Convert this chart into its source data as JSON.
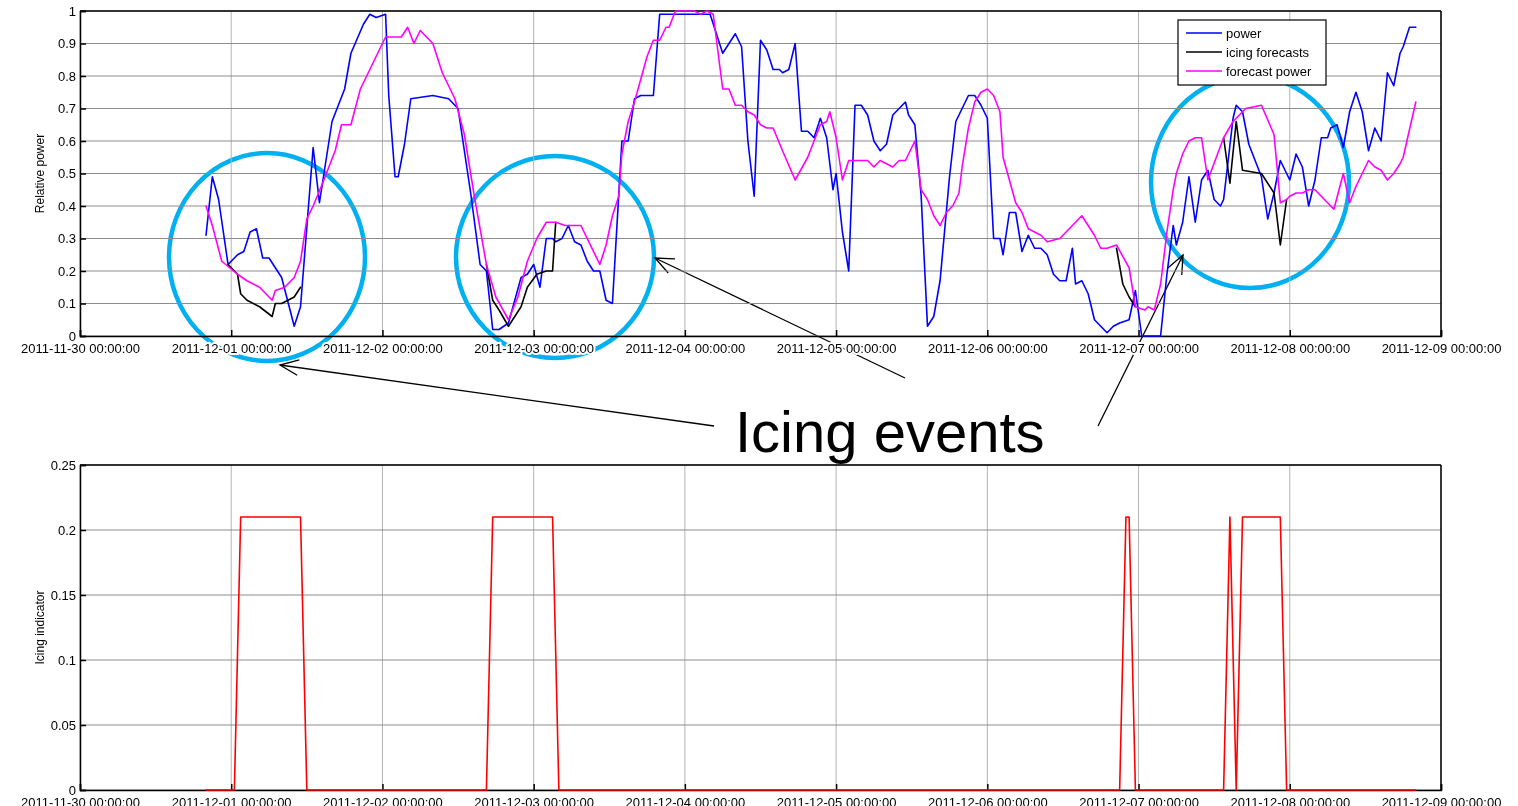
{
  "chart_data": [
    {
      "type": "line",
      "ylabel": "Relative power",
      "xlim": [
        "2011-11-30T00:00",
        "2011-12-09T00:00"
      ],
      "ylim": [
        0,
        1
      ],
      "xticks": [
        {
          "value": "2011-11-30T00:00",
          "label": "2011-11-30 00:00:00"
        },
        {
          "value": "2011-12-01T00:00",
          "label": "2011-12-01 00:00:00"
        },
        {
          "value": "2011-12-02T00:00",
          "label": "2011-12-02 00:00:00"
        },
        {
          "value": "2011-12-03T00:00",
          "label": "2011-12-03 00:00:00"
        },
        {
          "value": "2011-12-04T00:00",
          "label": "2011-12-04 00:00:00"
        },
        {
          "value": "2011-12-05T00:00",
          "label": "2011-12-05 00:00:00"
        },
        {
          "value": "2011-12-06T00:00",
          "label": "2011-12-06 00:00:00"
        },
        {
          "value": "2011-12-07T00:00",
          "label": "2011-12-07 00:00:00"
        },
        {
          "value": "2011-12-08T00:00",
          "label": "2011-12-08 00:00:00"
        },
        {
          "value": "2011-12-09T00:00",
          "label": "2011-12-09 00:00:00"
        }
      ],
      "yticks": [
        0,
        0.1,
        0.2,
        0.3,
        0.4,
        0.5,
        0.6,
        0.7,
        0.8,
        0.9,
        1
      ],
      "grid": true,
      "legend": "top right",
      "annotations": [
        "Icing events"
      ],
      "series": [
        {
          "name": "power",
          "color": "#0000ff",
          "x": [
            "2011-11-30T20:00",
            "2011-11-30T21:00",
            "2011-11-30T22:00",
            "2011-11-30T23:30",
            "2011-12-01T01:00",
            "2011-12-01T02:00",
            "2011-12-01T03:00",
            "2011-12-01T04:00",
            "2011-12-01T05:00",
            "2011-12-01T06:00",
            "2011-12-01T07:00",
            "2011-12-01T08:00",
            "2011-12-01T10:00",
            "2011-12-01T11:00",
            "2011-12-01T13:00",
            "2011-12-01T14:00",
            "2011-12-01T16:00",
            "2011-12-01T18:00",
            "2011-12-01T19:00",
            "2011-12-01T21:00",
            "2011-12-01T22:00",
            "2011-12-01T23:00",
            "2011-12-02T00:30",
            "2011-12-02T01:00",
            "2011-12-02T02:00",
            "2011-12-02T02:30",
            "2011-12-02T03:30",
            "2011-12-02T04:30",
            "2011-12-02T08:00",
            "2011-12-02T10:30",
            "2011-12-02T12:00",
            "2011-12-02T14:00",
            "2011-12-02T15:30",
            "2011-12-02T16:30",
            "2011-12-02T17:30",
            "2011-12-02T18:30",
            "2011-12-02T20:00",
            "2011-12-02T22:00",
            "2011-12-02T23:00",
            "2011-12-03T00:00",
            "2011-12-03T01:00",
            "2011-12-03T02:00",
            "2011-12-03T03:00",
            "2011-12-03T03:30",
            "2011-12-03T04:30",
            "2011-12-03T05:30",
            "2011-12-03T06:30",
            "2011-12-03T07:30",
            "2011-12-03T08:30",
            "2011-12-03T09:30",
            "2011-12-03T10:30",
            "2011-12-03T11:30",
            "2011-12-03T12:30",
            "2011-12-03T14:00",
            "2011-12-03T15:00",
            "2011-12-03T16:00",
            "2011-12-03T17:00",
            "2011-12-03T19:00",
            "2011-12-03T20:00",
            "2011-12-03T23:00",
            "2011-12-04T02:30",
            "2011-12-04T04:00",
            "2011-12-04T05:30",
            "2011-12-04T06:00",
            "2011-12-04T08:00",
            "2011-12-04T09:00",
            "2011-12-04T10:00",
            "2011-12-04T11:00",
            "2011-12-04T12:00",
            "2011-12-04T13:00",
            "2011-12-04T14:00",
            "2011-12-04T15:00",
            "2011-12-04T15:30",
            "2011-12-04T16:30",
            "2011-12-04T17:30",
            "2011-12-04T18:30",
            "2011-12-04T19:30",
            "2011-12-04T20:30",
            "2011-12-04T21:30",
            "2011-12-04T22:30",
            "2011-12-04T23:30",
            "2011-12-05T00:00",
            "2011-12-05T01:00",
            "2011-12-05T02:00",
            "2011-12-05T03:00",
            "2011-12-05T04:00",
            "2011-12-05T05:00",
            "2011-12-05T06:00",
            "2011-12-05T07:00",
            "2011-12-05T08:00",
            "2011-12-05T09:00",
            "2011-12-05T11:00",
            "2011-12-05T11:30",
            "2011-12-05T12:30",
            "2011-12-05T13:30",
            "2011-12-05T14:30",
            "2011-12-05T15:30",
            "2011-12-05T16:30",
            "2011-12-05T18:00",
            "2011-12-05T19:00",
            "2011-12-05T21:00",
            "2011-12-05T22:00",
            "2011-12-05T23:00",
            "2011-12-06T00:00",
            "2011-12-06T01:00",
            "2011-12-06T02:00",
            "2011-12-06T02:30",
            "2011-12-06T03:30",
            "2011-12-06T04:30",
            "2011-12-06T05:30",
            "2011-12-06T06:30",
            "2011-12-06T07:30",
            "2011-12-06T08:30",
            "2011-12-06T09:30",
            "2011-12-06T10:30",
            "2011-12-06T11:30",
            "2011-12-06T12:30",
            "2011-12-06T13:30",
            "2011-12-06T14:00",
            "2011-12-06T15:00",
            "2011-12-06T16:00",
            "2011-12-06T17:00",
            "2011-12-06T18:00",
            "2011-12-06T19:00",
            "2011-12-06T20:00",
            "2011-12-06T21:00",
            "2011-12-06T22:30",
            "2011-12-06T23:30",
            "2011-12-07T00:30",
            "2011-12-07T03:30",
            "2011-12-07T04:30",
            "2011-12-07T05:30",
            "2011-12-07T06:00",
            "2011-12-07T07:00",
            "2011-12-07T08:00",
            "2011-12-07T09:00",
            "2011-12-07T10:00",
            "2011-12-07T11:00",
            "2011-12-07T12:00",
            "2011-12-07T13:00",
            "2011-12-07T13:30",
            "2011-12-07T15:00",
            "2011-12-07T15:30",
            "2011-12-07T16:30",
            "2011-12-07T17:30",
            "2011-12-07T18:30",
            "2011-12-07T19:30",
            "2011-12-07T20:30",
            "2011-12-07T21:30",
            "2011-12-07T22:30",
            "2011-12-07T23:30",
            "2011-12-08T00:00",
            "2011-12-08T01:00",
            "2011-12-08T02:00",
            "2011-12-08T03:00",
            "2011-12-08T04:00",
            "2011-12-08T05:00",
            "2011-12-08T06:00",
            "2011-12-08T06:30",
            "2011-12-08T07:30",
            "2011-12-08T08:30",
            "2011-12-08T09:30",
            "2011-12-08T10:30",
            "2011-12-08T11:30",
            "2011-12-08T12:30",
            "2011-12-08T13:30",
            "2011-12-08T14:30",
            "2011-12-08T15:30",
            "2011-12-08T16:30",
            "2011-12-08T17:30",
            "2011-12-08T18:00",
            "2011-12-08T19:00",
            "2011-12-08T20:00"
          ],
          "values": [
            0.31,
            0.49,
            0.42,
            0.22,
            0.25,
            0.26,
            0.32,
            0.33,
            0.24,
            0.24,
            0.21,
            0.18,
            0.03,
            0.09,
            0.58,
            0.41,
            0.66,
            0.76,
            0.87,
            0.96,
            0.99,
            0.98,
            0.99,
            0.74,
            0.49,
            0.49,
            0.59,
            0.73,
            0.74,
            0.73,
            0.7,
            0.44,
            0.22,
            0.2,
            0.02,
            0.02,
            0.04,
            0.18,
            0.19,
            0.22,
            0.15,
            0.3,
            0.3,
            0.29,
            0.3,
            0.34,
            0.29,
            0.28,
            0.23,
            0.2,
            0.2,
            0.11,
            0.1,
            0.6,
            0.6,
            0.73,
            0.74,
            0.74,
            0.99,
            0.99,
            0.99,
            0.99,
            0.9,
            0.87,
            0.93,
            0.89,
            0.6,
            0.43,
            0.91,
            0.88,
            0.82,
            0.82,
            0.81,
            0.82,
            0.9,
            0.63,
            0.63,
            0.61,
            0.67,
            0.61,
            0.45,
            0.5,
            0.32,
            0.2,
            0.71,
            0.71,
            0.68,
            0.6,
            0.57,
            0.59,
            0.68,
            0.72,
            0.68,
            0.65,
            0.43,
            0.03,
            0.06,
            0.17,
            0.49,
            0.66,
            0.74,
            0.74,
            0.71,
            0.67,
            0.3,
            0.3,
            0.25,
            0.38,
            0.38,
            0.26,
            0.31,
            0.27,
            0.27,
            0.25,
            0.19,
            0.17,
            0.17,
            0.27,
            0.16,
            0.17,
            0.13,
            0.05,
            0.03,
            0.01,
            0.03,
            0.04,
            0.05,
            0.14,
            0,
            0,
            0.19,
            0.34,
            0.28,
            0.35,
            0.49,
            0.35,
            0.48,
            0.51,
            0.42,
            0.4,
            0.42,
            0.67,
            0.71,
            0.69,
            0.59,
            0.54,
            0.49,
            0.36,
            0.44,
            0.54,
            0.5,
            0.48,
            0.56,
            0.52,
            0.4,
            0.48,
            0.61,
            0.61,
            0.64,
            0.65,
            0.58,
            0.69,
            0.75,
            0.69,
            0.57,
            0.64,
            0.6,
            0.81,
            0.77,
            0.87,
            0.89,
            0.95,
            0.95
          ]
        },
        {
          "name": "icing forecasts",
          "color": "#000000",
          "x": [
            "2011-11-30T23:30",
            "2011-12-01T01:00",
            "2011-12-01T01:30",
            "2011-12-01T02:30",
            "2011-12-01T04:30",
            "2011-12-01T06:30",
            "2011-12-01T07:00",
            "2011-12-01T08:00",
            "2011-12-01T10:00",
            "2011-12-01T11:00",
            "2011-12-01T12:00",
            "2011-12-02T00:00",
            "2011-12-02T16:30",
            "2011-12-02T17:30",
            "2011-12-02T18:30",
            "2011-12-02T20:00",
            "2011-12-02T22:00",
            "2011-12-02T23:00",
            "2011-12-03T00:30",
            "2011-12-03T02:00",
            "2011-12-03T03:00",
            "2011-12-03T03:30",
            "2011-12-04T00:00",
            "2011-12-06T20:30",
            "2011-12-06T21:30",
            "2011-12-06T22:30",
            "2011-12-06T23:30",
            "2011-12-07T12:00",
            "2011-12-07T13:30",
            "2011-12-07T14:30",
            "2011-12-07T15:30",
            "2011-12-07T16:30",
            "2011-12-07T19:30",
            "2011-12-07T21:30",
            "2011-12-07T22:30",
            "2011-12-07T23:30"
          ],
          "values": [
            0.22,
            0.19,
            0.13,
            0.11,
            0.09,
            0.06,
            0.1,
            0.1,
            0.12,
            0.15,
            null,
            null,
            0.22,
            0.11,
            0.08,
            0.03,
            0.09,
            0.15,
            0.19,
            0.2,
            0.2,
            0.35,
            null,
            0.27,
            0.16,
            0.12,
            0.09,
            null,
            0.61,
            0.47,
            0.66,
            0.51,
            0.5,
            0.44,
            0.28,
            0.42
          ]
        },
        {
          "name": "forecast power",
          "color": "#ff00ff",
          "x": [
            "2011-11-30T20:00",
            "2011-11-30T21:00",
            "2011-11-30T22:30",
            "2011-12-01T01:00",
            "2011-12-01T02:30",
            "2011-12-01T04:30",
            "2011-12-01T06:30",
            "2011-12-01T07:00",
            "2011-12-01T08:30",
            "2011-12-01T10:00",
            "2011-12-01T11:00",
            "2011-12-01T12:00",
            "2011-12-01T13:00",
            "2011-12-01T14:30",
            "2011-12-01T16:30",
            "2011-12-01T17:30",
            "2011-12-01T19:00",
            "2011-12-01T20:30",
            "2011-12-01T22:30",
            "2011-12-02T00:30",
            "2011-12-02T03:00",
            "2011-12-02T04:00",
            "2011-12-02T05:00",
            "2011-12-02T06:00",
            "2011-12-02T08:00",
            "2011-12-02T09:30",
            "2011-12-02T11:30",
            "2011-12-02T13:00",
            "2011-12-02T14:30",
            "2011-12-02T16:30",
            "2011-12-02T18:00",
            "2011-12-02T20:00",
            "2011-12-02T21:30",
            "2011-12-02T23:00",
            "2011-12-03T00:30",
            "2011-12-03T02:00",
            "2011-12-03T03:30",
            "2011-12-03T05:00",
            "2011-12-03T07:30",
            "2011-12-03T10:30",
            "2011-12-03T11:30",
            "2011-12-03T12:30",
            "2011-12-03T13:30",
            "2011-12-03T14:00",
            "2011-12-03T15:00",
            "2011-12-03T16:00",
            "2011-12-03T18:00",
            "2011-12-03T19:00",
            "2011-12-03T20:00",
            "2011-12-03T21:00",
            "2011-12-03T21:30",
            "2011-12-03T22:30",
            "2011-12-04T01:30",
            "2011-12-04T02:30",
            "2011-12-04T03:30",
            "2011-12-04T04:30",
            "2011-12-04T06:00",
            "2011-12-04T07:00",
            "2011-12-04T08:00",
            "2011-12-04T09:00",
            "2011-12-04T10:00",
            "2011-12-04T11:00",
            "2011-12-04T12:00",
            "2011-12-04T13:00",
            "2011-12-04T14:00",
            "2011-12-04T15:30",
            "2011-12-04T17:30",
            "2011-12-04T19:30",
            "2011-12-04T21:30",
            "2011-12-04T22:30",
            "2011-12-04T23:00",
            "2011-12-05T00:00",
            "2011-12-05T01:00",
            "2011-12-05T02:00",
            "2011-12-05T03:00",
            "2011-12-05T04:00",
            "2011-12-05T05:00",
            "2011-12-05T06:00",
            "2011-12-05T07:00",
            "2011-12-05T08:00",
            "2011-12-05T09:00",
            "2011-12-05T10:00",
            "2011-12-05T11:00",
            "2011-12-05T12:30",
            "2011-12-05T13:30",
            "2011-12-05T14:30",
            "2011-12-05T15:30",
            "2011-12-05T16:30",
            "2011-12-05T17:30",
            "2011-12-05T18:30",
            "2011-12-05T19:30",
            "2011-12-05T20:00",
            "2011-12-05T21:00",
            "2011-12-05T22:00",
            "2011-12-05T23:00",
            "2011-12-06T00:00",
            "2011-12-06T01:00",
            "2011-12-06T02:00",
            "2011-12-06T02:30",
            "2011-12-06T03:30",
            "2011-12-06T04:30",
            "2011-12-06T05:30",
            "2011-12-06T06:30",
            "2011-12-06T08:30",
            "2011-12-06T09:30",
            "2011-12-06T11:30",
            "2011-12-06T12:30",
            "2011-12-06T15:00",
            "2011-12-06T17:00",
            "2011-12-06T18:00",
            "2011-12-06T19:00",
            "2011-12-06T20:30",
            "2011-12-06T22:30",
            "2011-12-06T23:30",
            "2011-12-07T01:00",
            "2011-12-07T01:30",
            "2011-12-07T02:30",
            "2011-12-07T03:30",
            "2011-12-07T04:30",
            "2011-12-07T05:30",
            "2011-12-07T06:00",
            "2011-12-07T07:00",
            "2011-12-07T08:00",
            "2011-12-07T09:00",
            "2011-12-07T10:00",
            "2011-12-07T11:00",
            "2011-12-07T13:30",
            "2011-12-07T15:00",
            "2011-12-07T17:00",
            "2011-12-07T19:30",
            "2011-12-07T21:30",
            "2011-12-07T22:30",
            "2011-12-07T23:30",
            "2011-12-08T00:00",
            "2011-12-08T01:00",
            "2011-12-08T02:00",
            "2011-12-08T03:00",
            "2011-12-08T04:00",
            "2011-12-08T05:00",
            "2011-12-08T06:00",
            "2011-12-08T07:00",
            "2011-12-08T08:30",
            "2011-12-08T09:30",
            "2011-12-08T10:30",
            "2011-12-08T11:30",
            "2011-12-08T12:30",
            "2011-12-08T13:30",
            "2011-12-08T14:30",
            "2011-12-08T15:30",
            "2011-12-08T16:30",
            "2011-12-08T17:30",
            "2011-12-08T18:00",
            "2011-12-08T20:00"
          ],
          "values": [
            0.4,
            0.34,
            0.23,
            0.19,
            0.17,
            0.15,
            0.11,
            0.14,
            0.15,
            0.18,
            0.23,
            0.36,
            0.4,
            0.47,
            0.57,
            0.65,
            0.65,
            0.76,
            0.84,
            0.92,
            0.92,
            0.95,
            0.9,
            0.94,
            0.9,
            0.81,
            0.73,
            0.62,
            0.44,
            0.22,
            0.12,
            0.05,
            0.12,
            0.23,
            0.3,
            0.35,
            0.35,
            0.34,
            0.34,
            0.22,
            0.28,
            0.37,
            0.43,
            0.56,
            0.66,
            0.72,
            0.86,
            0.91,
            0.91,
            0.95,
            0.95,
            1.0,
            1.0,
            0.99,
            1.0,
            0.99,
            0.76,
            0.76,
            0.71,
            0.71,
            0.69,
            0.68,
            0.65,
            0.64,
            0.64,
            0.57,
            0.48,
            0.55,
            0.65,
            0.66,
            0.69,
            0.61,
            0.48,
            0.54,
            0.54,
            0.54,
            0.54,
            0.52,
            0.54,
            0.53,
            0.52,
            0.54,
            0.54,
            0.6,
            0.45,
            0.42,
            0.37,
            0.34,
            0.38,
            0.4,
            0.44,
            0.52,
            0.64,
            0.72,
            0.75,
            0.76,
            0.74,
            0.69,
            0.55,
            0.48,
            0.41,
            0.38,
            0.33,
            0.31,
            0.29,
            0.3,
            0.32,
            0.37,
            0.31,
            0.27,
            0.27,
            0.28,
            0.21,
            0.09,
            0.08,
            0.09,
            0.08,
            0.16,
            0.32,
            0.45,
            0.5,
            0.56,
            0.6,
            0.61,
            0.61,
            0.48,
            0.61,
            0.66,
            0.7,
            0.71,
            0.62,
            0.41,
            0.42,
            0.43,
            0.44,
            0.44,
            0.45,
            0.45,
            0.43,
            0.41,
            0.39,
            0.5,
            0.41,
            0.46,
            0.5,
            0.54,
            0.52,
            0.51,
            0.48,
            0.5,
            0.53,
            0.55,
            0.72
          ]
        }
      ]
    },
    {
      "type": "line",
      "ylabel": "Icing indicator",
      "xlim": [
        "2011-11-30T00:00",
        "2011-12-09T00:00"
      ],
      "ylim": [
        0,
        0.25
      ],
      "xticks": [
        {
          "value": "2011-11-30T00:00",
          "label": "2011-11-30 00:00:00"
        },
        {
          "value": "2011-12-01T00:00",
          "label": "2011-12-01 00:00:00"
        },
        {
          "value": "2011-12-02T00:00",
          "label": "2011-12-02 00:00:00"
        },
        {
          "value": "2011-12-03T00:00",
          "label": "2011-12-03 00:00:00"
        },
        {
          "value": "2011-12-04T00:00",
          "label": "2011-12-04 00:00:00"
        },
        {
          "value": "2011-12-05T00:00",
          "label": "2011-12-05 00:00:00"
        },
        {
          "value": "2011-12-06T00:00",
          "label": "2011-12-06 00:00:00"
        },
        {
          "value": "2011-12-07T00:00",
          "label": "2011-12-07 00:00:00"
        },
        {
          "value": "2011-12-08T00:00",
          "label": "2011-12-08 00:00:00"
        },
        {
          "value": "2011-12-09T00:00",
          "label": "2011-12-09 00:00:00"
        }
      ],
      "yticks": [
        0,
        0.05,
        0.1,
        0.15,
        0.2,
        0.25
      ],
      "grid": true,
      "series": [
        {
          "color": "#ff0000",
          "x": [
            "2011-11-30T20:00",
            "2011-12-01T00:30",
            "2011-12-01T01:30",
            "2011-12-01T11:00",
            "2011-12-01T12:00",
            "2011-12-02T16:30",
            "2011-12-02T17:30",
            "2011-12-03T03:00",
            "2011-12-03T04:00",
            "2011-12-06T21:00",
            "2011-12-06T22:00",
            "2011-12-06T22:30",
            "2011-12-06T23:30",
            "2011-12-07T13:30",
            "2011-12-07T14:30",
            "2011-12-07T15:30",
            "2011-12-07T16:30",
            "2011-12-07T22:30",
            "2011-12-07T23:30",
            "2011-12-08T20:00"
          ],
          "values": [
            0,
            0,
            0.21,
            0.21,
            0,
            0,
            0.21,
            0.21,
            0,
            0,
            0.21,
            0.21,
            0,
            0,
            0.21,
            0,
            0.21,
            0.21,
            0,
            0
          ]
        }
      ]
    }
  ]
}
